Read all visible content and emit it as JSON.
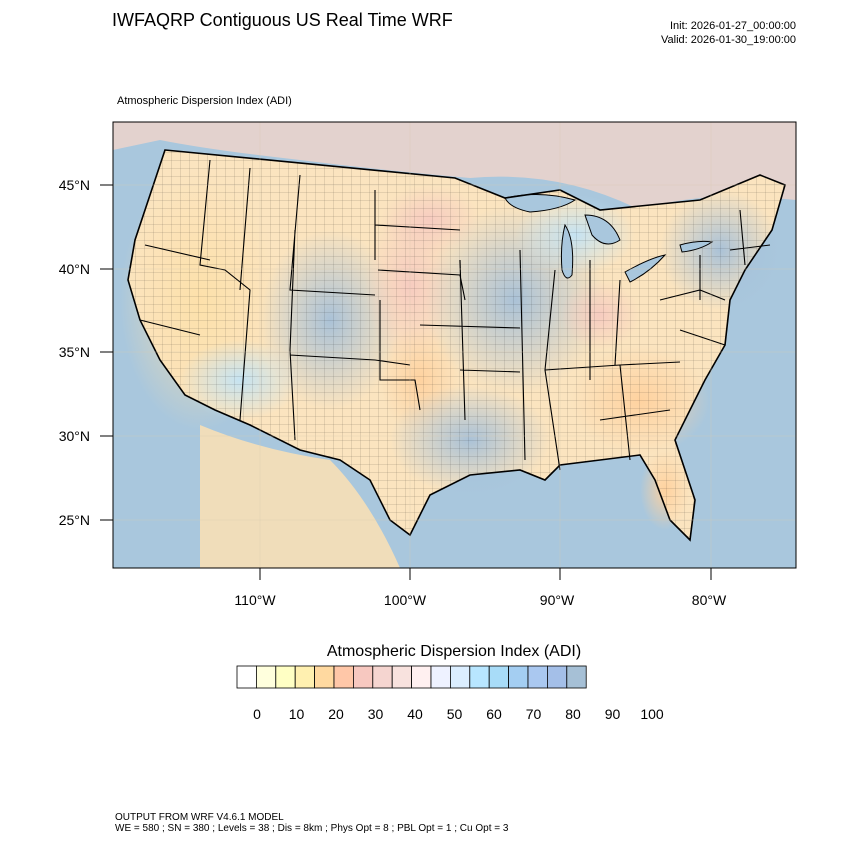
{
  "header": {
    "title": "IWFAQRP Contiguous US Real Time WRF",
    "init": "Init: 2026-01-27_00:00:00",
    "valid": "Valid: 2026-01-30_19:00:00"
  },
  "map": {
    "variable_label": "Atmospheric Dispersion Index   (ADI)",
    "lat_labels": [
      "45°N",
      "40°N",
      "35°N",
      "30°N",
      "25°N"
    ],
    "lon_labels": [
      "110°W",
      "100°W",
      "90°W",
      "80°W"
    ],
    "colors": {
      "ocean": "#a9c7dd",
      "land_low": "#fde7b3",
      "land_high": "#a8c3da",
      "boundary": "#000000"
    }
  },
  "legend": {
    "title": "Atmospheric Dispersion Index  (ADI)",
    "tick_labels": [
      "0",
      "10",
      "20",
      "30",
      "40",
      "50",
      "60",
      "70",
      "80",
      "90",
      "100"
    ],
    "colors": [
      "#ffffff",
      "#ffffdd",
      "#ffffc4",
      "#fff0b0",
      "#ffd9a0",
      "#ffc7a8",
      "#f7c8c0",
      "#f5d5d0",
      "#f8e2de",
      "#fff0f0",
      "#eef2ff",
      "#dbeeff",
      "#b8e6ff",
      "#a8dcf8",
      "#a4cef2",
      "#aac8f0",
      "#a4bfe8",
      "#a6c0d6"
    ]
  },
  "footer": {
    "line1": "OUTPUT FROM WRF V4.6.1 MODEL",
    "line2": "WE = 580 ; SN = 380 ; Levels = 38 ; Dis = 8km ; Phys Opt = 8 ; PBL Opt = 1 ; Cu Opt = 3"
  }
}
